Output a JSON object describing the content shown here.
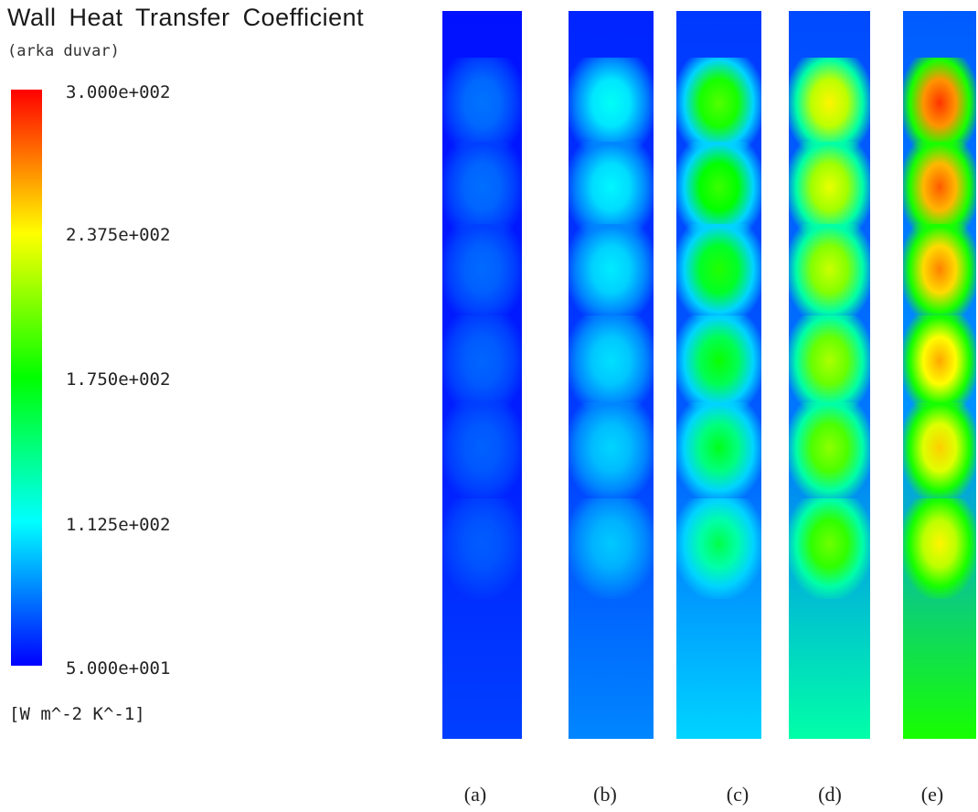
{
  "chart_data": {
    "type": "heatmap",
    "title": "Wall Heat Transfer Coefficient",
    "subtitle": "(arka duvar)",
    "colorbar": {
      "min": 50,
      "max": 300,
      "tick_labels": [
        "3.000e+002",
        "2.375e+002",
        "1.750e+002",
        "1.125e+002",
        "5.000e+001"
      ],
      "tick_values": [
        300,
        237.5,
        175,
        112.5,
        50
      ],
      "units": "[W m^-2 K^-1]",
      "colors": [
        "#ff0000",
        "#ffff00",
        "#00ff00",
        "#00ffff",
        "#0000ff"
      ]
    },
    "panels": [
      {
        "label": "(a)",
        "level": 0.18
      },
      {
        "label": "(b)",
        "level": 0.38
      },
      {
        "label": "(c)",
        "level": 0.58
      },
      {
        "label": "(d)",
        "level": 0.76
      },
      {
        "label": "(e)",
        "level": 0.95
      }
    ],
    "spots_per_panel": 6
  }
}
